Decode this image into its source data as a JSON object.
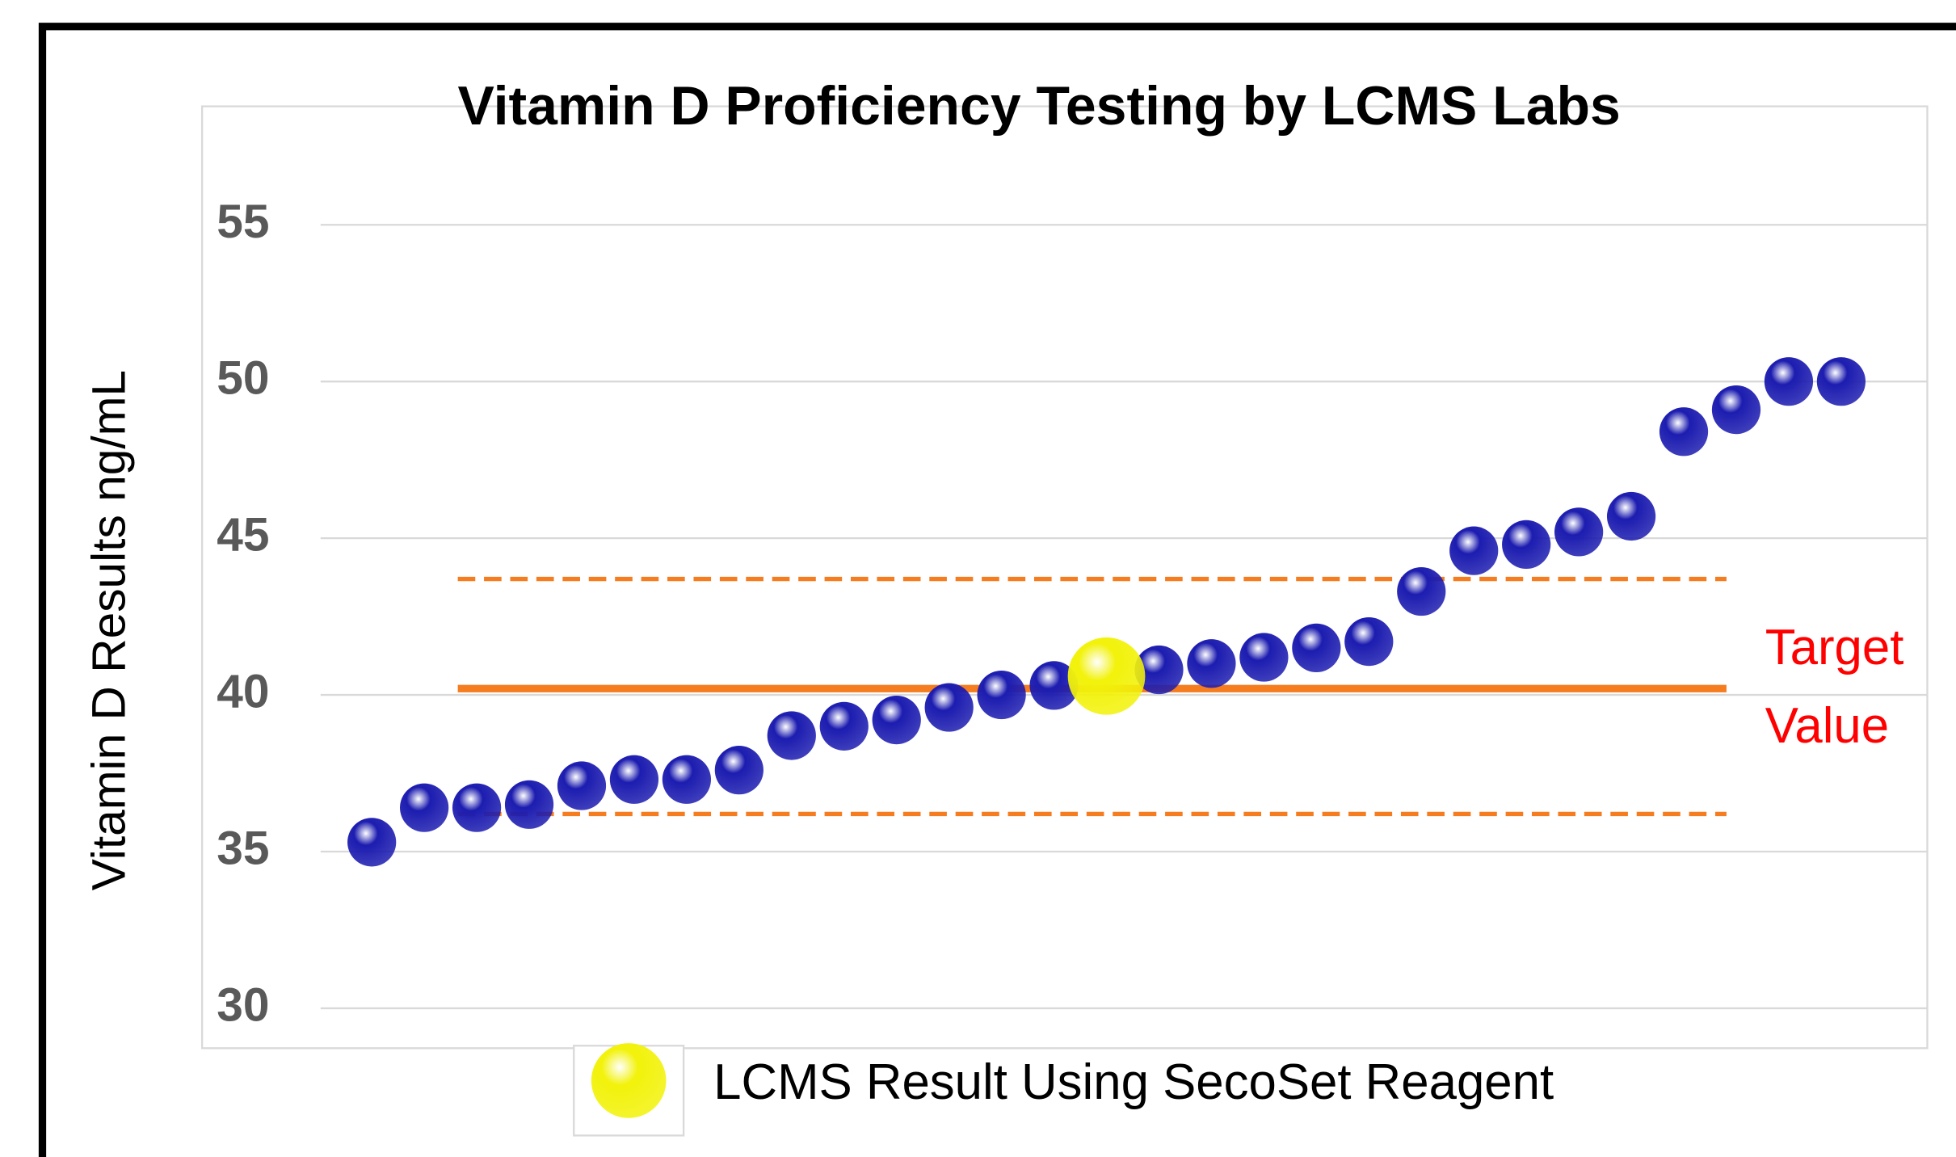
{
  "chart_data": {
    "type": "scatter",
    "title": "Vitamin D Proficiency Testing by LCMS Labs",
    "y_label": "Vitamin D Results  ng/mL",
    "categories": [
      null,
      null,
      null,
      null,
      null,
      null,
      null,
      null,
      null,
      null,
      null,
      null,
      null,
      null,
      null,
      null,
      null,
      null,
      null,
      null,
      null,
      null,
      null,
      null,
      null,
      null,
      null,
      null,
      null
    ],
    "series": [
      {
        "color": "#1c1cb0",
        "values": [
          35.3,
          36.4,
          36.4,
          36.5,
          37.1,
          37.3,
          37.3,
          37.6,
          38.7,
          39.0,
          39.2,
          39.6,
          40.0,
          40.3,
          null,
          40.8,
          41.0,
          41.2,
          41.5,
          41.7,
          43.3,
          44.6,
          44.8,
          45.2,
          45.7,
          48.4,
          49.1,
          50.0,
          50.0
        ]
      },
      {
        "name": "LCMS Result Using SecoSet Reagent",
        "color": "#f2f20a",
        "values": [
          null,
          null,
          null,
          null,
          null,
          null,
          null,
          null,
          null,
          null,
          null,
          null,
          null,
          null,
          40.6,
          null,
          null,
          null,
          null,
          null,
          null,
          null,
          null,
          null,
          null,
          null,
          null,
          null,
          null
        ]
      }
    ],
    "reference_lines": [
      {
        "value": 40.2,
        "style": "solid",
        "label": "Target Value",
        "label_color": "#ff0000"
      },
      {
        "value": 43.7,
        "style": "dashed"
      },
      {
        "value": 36.2,
        "style": "dashed"
      }
    ],
    "reference_color": "#f57c1f",
    "ylim": [
      30,
      55
    ],
    "yticks": [
      30,
      35,
      40,
      45,
      50,
      55
    ],
    "grid": true
  }
}
